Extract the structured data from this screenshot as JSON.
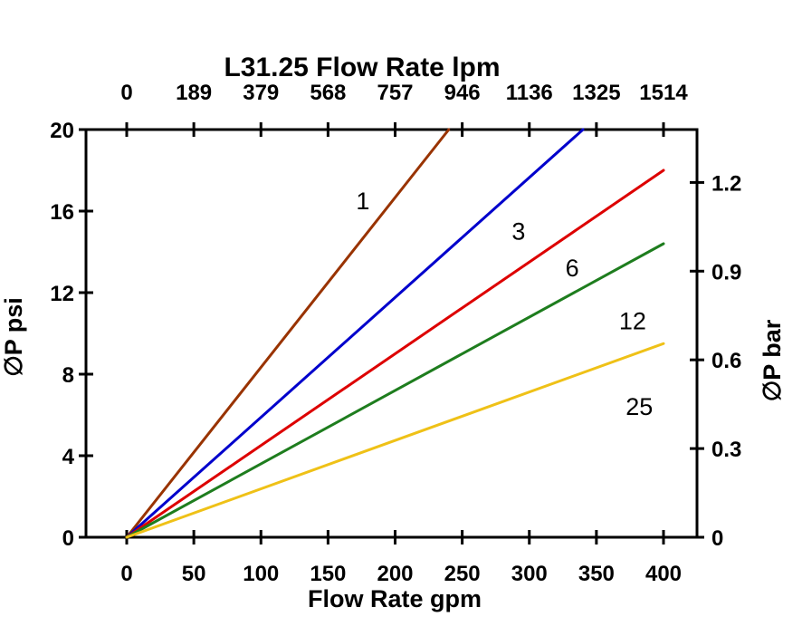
{
  "page": {
    "background": "#FFFFFF"
  },
  "chart_data": {
    "type": "line",
    "title": "L31.25 Flow Rate lpm",
    "xlabel": "Flow Rate gpm",
    "ylabel_left": "∅P psi",
    "ylabel_right": "∅P bar",
    "xlim": [
      0,
      400
    ],
    "ylim_psi": [
      0,
      20
    ],
    "grid": false,
    "x_ticks_gpm": [
      0,
      50,
      100,
      150,
      200,
      250,
      300,
      350,
      400
    ],
    "top_tick_labels_lpm": [
      "0",
      "189",
      "379",
      "568",
      "757",
      "946",
      "1136",
      "1325",
      "1514"
    ],
    "y_ticks_psi": [
      0,
      4,
      8,
      12,
      16,
      20
    ],
    "right_ticks_bar": [
      0,
      0.3,
      0.6,
      0.9,
      1.2
    ],
    "psi_per_bar": 14.5038,
    "axis_color": "#000000",
    "series": [
      {
        "label": "1",
        "color": "#993300",
        "points": [
          [
            0,
            0
          ],
          [
            240,
            20
          ]
        ]
      },
      {
        "label": "3",
        "color": "#0000CC",
        "points": [
          [
            0,
            0
          ],
          [
            340,
            20
          ]
        ]
      },
      {
        "label": "6",
        "color": "#DD0000",
        "points": [
          [
            0,
            0
          ],
          [
            400,
            18
          ]
        ]
      },
      {
        "label": "12",
        "color": "#1E7D1E",
        "points": [
          [
            0,
            0
          ],
          [
            400,
            14.4
          ]
        ]
      },
      {
        "label": "25",
        "color": "#EFC117",
        "points": [
          [
            0,
            0
          ],
          [
            400,
            9.5
          ]
        ]
      }
    ],
    "series_label_positions": [
      {
        "label": "1",
        "gpm": 176,
        "psi": 16.5
      },
      {
        "label": "3",
        "gpm": 292,
        "psi": 15.0
      },
      {
        "label": "6",
        "gpm": 332,
        "psi": 13.2
      },
      {
        "label": "12",
        "gpm": 377,
        "psi": 10.6
      },
      {
        "label": "25",
        "gpm": 382,
        "psi": 6.4
      }
    ]
  }
}
